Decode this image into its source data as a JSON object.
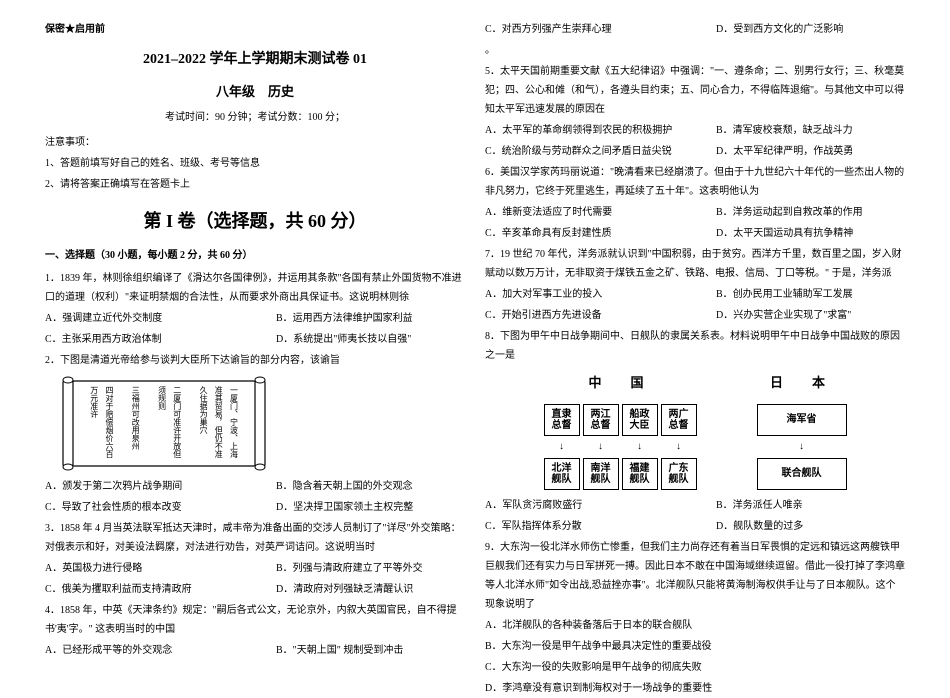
{
  "header_mark": "保密★启用前",
  "title_main": "2021–2022 学年上学期期末测试卷 01",
  "subtitle": "八年级　历史",
  "exam_info": "考试时间：90 分钟；考试分数：100 分；",
  "notes_label": "注意事项：",
  "note1": "1、答题前填写好自己的姓名、班级、考号等信息",
  "note2": "2、请将答案正确填写在答题卡上",
  "section1_header": "第 I 卷（选择题，共 60 分）",
  "section1_sub": "一、选择题（30 小题，每小题 2 分，共 60 分）",
  "q1_text": "1．1839 年，林则徐组织编译了《滑达尔各国律例》，并运用其条款\"各国有禁止外国货物不准进口的道理（权利）\"来证明禁烟的合法性，从而要求外商出具保证书。这说明林则徐",
  "q1_a": "A．强调建立近代外交制度",
  "q1_b": "B．运用西方法律维护国家利益",
  "q1_c": "C．主张采用西方政治体制",
  "q1_d": "D．系统提出\"师夷长技以自强\"",
  "q2_text": "2．下图是清道光帝给参与谈判大臣所下达谕旨的部分内容，该谕旨",
  "scroll_lines": [
    "四对于赔偿烟价六百万元准许",
    "三福州可改用泉州",
    "二厦门可准许开放但须规则",
    "一厦门、宁波、上海准其贸易，但仍不准久住据为巢穴"
  ],
  "q2_a": "A．颁发于第二次鸦片战争期间",
  "q2_b": "B．隐含着天朝上国的外交观念",
  "q2_c": "C．导致了社会性质的根本改变",
  "q2_d": "D．坚决捍卫国家领土主权完整",
  "q3_text": "3．1858 年 4 月当英法联军抵达天津时，咸丰帝为准备出面的交涉人员制订了\"详尽\"外交策略：对俄表示和好，对美设法羁縻，对法进行劝告，对英严词诘问。这说明当时",
  "q3_a": "A．英国极力进行侵略",
  "q3_b": "B．列强与清政府建立了平等外交",
  "q3_c": "C．俄美为攫取利益而支持清政府",
  "q3_d": "D．清政府对列强缺乏清醒认识",
  "q4_text": "4．1858 年，中英《天津条约》规定：\"嗣后各式公文，无论京外，内叙大英国官民，自不得提书'夷'字。\" 这表明当时的中国",
  "q4_a": "A．已经形成平等的外交观念",
  "q4_b": "B．\"天朝上国\" 规制受到冲击",
  "q4_c": "C．对西方列强产生崇拜心理",
  "q4_d": "D．受到西方文化的广泛影响",
  "dot": "。",
  "q5_text": "5．太平天国前期重要文献《五大纪律诏》中强调：\"一、遵条命；二、别男行女行；三、秋毫莫犯；四、公心和傩（和气），各遵头目约束；五、同心合力，不得临阵退缩\"。与其他文中可以得知太平军迅速发展的原因在",
  "q5_a": "A．太平军的革命纲领得到农民的积极拥护",
  "q5_b": "B．清军疲校衰颓，缺乏战斗力",
  "q5_c": "C．统治阶级与劳动群众之间矛盾日益尖锐",
  "q5_d": "D．太平军纪律严明，作战英勇",
  "q6_text": "6．美国汉学家芮玛丽说道：\"晚清看来已经崩溃了。但由于十九世纪六十年代的一些杰出人物的非凡努力，它终于死里逃生，再延续了五十年\"。这表明他认为",
  "q6_a": "A．维新变法适应了时代需要",
  "q6_b": "B．洋务运动起到自救改革的作用",
  "q6_c": "C．辛亥革命具有反封建性质",
  "q6_d": "D．太平天国运动具有抗争精神",
  "q7_text": "7．19 世纪 70 年代，洋务派就认识到\"中国积弱，由于贫穷。西洋方千里，数百里之国，岁入财赋动以数万万计，无非取资于煤铁五金之矿、铁路、电报、信局、丁口等税。\" 于是，洋务派",
  "q7_a": "A．加大对军事工业的投入",
  "q7_b": "B．创办民用工业辅助军工发展",
  "q7_c": "C．开始引进西方先进设备",
  "q7_d": "D．兴办实营企业实现了\"求富\"",
  "q8_text": "8．下图为甲午中日战争期间中、日舰队的隶属关系表。材料说明甲午中日战争中国战败的原因之一是",
  "diagram_cn": "中　国",
  "diagram_jp": "日　本",
  "cn_top": [
    "直隶\n总督",
    "两江\n总督",
    "船政\n大臣",
    "两广\n总督"
  ],
  "cn_bot": [
    "北洋\n舰队",
    "南洋\n舰队",
    "福建\n舰队",
    "广东\n舰队"
  ],
  "jp_top": "海军省",
  "jp_bot": "联合舰队",
  "q8_a": "A．军队贪污腐败盛行",
  "q8_b": "B．洋务派任人唯亲",
  "q8_c": "C．军队指挥体系分散",
  "q8_d": "D．舰队数量的过多",
  "q9_text": "9．大东沟一役北洋水师伤亡惨重，但我们主力尚存还有着当日军畏惧的定远和镇远这两艘铁甲巨舰我们还有实力与日军拼死一搏。因此日本不敢在中国海域继续逗留。借此一役打掉了李鸿章等人北洋水师\"如令出战,恐益挫亦事\"。北洋舰队只能将黄海制海权供手让与了日本舰队。这个现象说明了",
  "q9_a": "A．北洋舰队的各种装备落后于日本的联合舰队",
  "q9_b": "B．大东沟一役是甲午战争中最具决定性的重要战役",
  "q9_c": "C．大东沟一役的失败影响是甲午战争的彻底失败",
  "q9_d": "D．李鸿章没有意识到制海权对于一场战争的重要性"
}
